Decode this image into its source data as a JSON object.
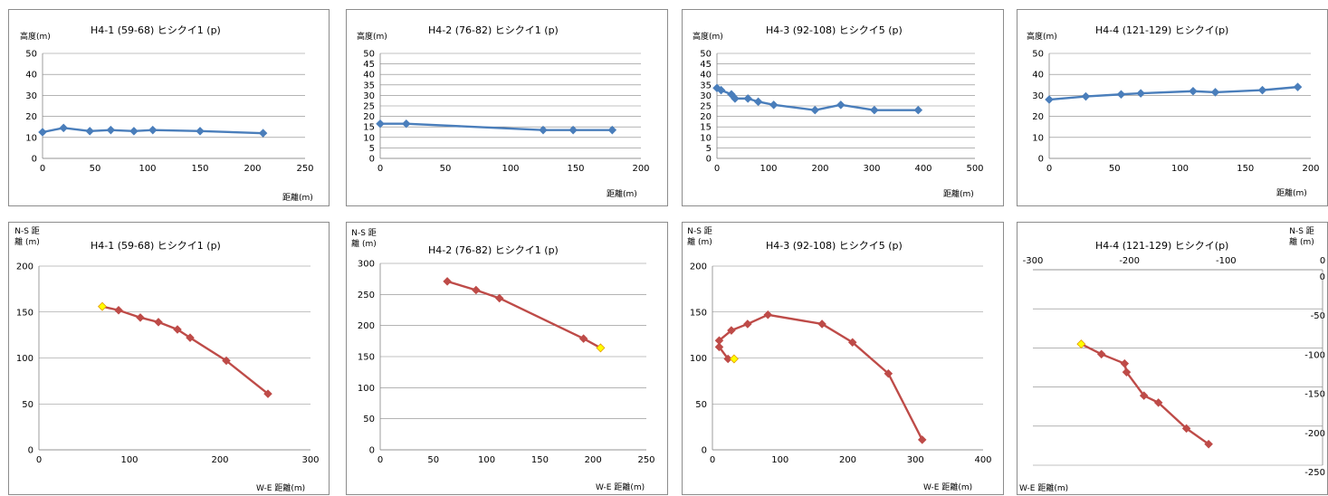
{
  "colors": {
    "profile_line": "#4a7ebb",
    "profile_marker": "#4a7ebb",
    "track_line": "#be4b48",
    "track_marker": "#be4b48",
    "start_marker": "#ffff00",
    "start_marker_edge": "#e6a000",
    "axis": "#868686",
    "grid": "#868686"
  },
  "chart_data": [
    {
      "type": "line",
      "title": "H4-1 (59-68) ヒシクイ1 (p)",
      "ylabel": "高度(m)",
      "xlabel": "距離(m)",
      "xlim": [
        0,
        250
      ],
      "ylim": [
        0,
        50
      ],
      "xticks": [
        0,
        50,
        100,
        150,
        200,
        250
      ],
      "yticks": [
        0,
        10,
        20,
        30,
        40,
        50
      ],
      "series": [
        {
          "x": [
            0,
            20,
            45,
            65,
            87,
            105,
            150,
            210
          ],
          "y": [
            12.5,
            14.5,
            13,
            13.5,
            13,
            13.5,
            13,
            12
          ]
        }
      ]
    },
    {
      "type": "line",
      "title": "H4-2 (76-82) ヒシクイ1 (p)",
      "ylabel": "高度(m)",
      "xlabel": "距離(m)",
      "xlim": [
        0,
        200
      ],
      "ylim": [
        0,
        50
      ],
      "xticks": [
        0,
        50,
        100,
        150,
        200
      ],
      "yticks": [
        0,
        5,
        10,
        15,
        20,
        25,
        30,
        35,
        40,
        45,
        50
      ],
      "series": [
        {
          "x": [
            0,
            20,
            125,
            148,
            178
          ],
          "y": [
            16.5,
            16.5,
            13.5,
            13.5,
            13.5
          ]
        }
      ]
    },
    {
      "type": "line",
      "title": "H4-3 (92-108) ヒシクイ5 (p)",
      "ylabel": "高度(m)",
      "xlabel": "距離(m)",
      "xlim": [
        0,
        500
      ],
      "ylim": [
        0,
        50
      ],
      "xticks": [
        0,
        100,
        200,
        300,
        400,
        500
      ],
      "yticks": [
        0,
        5,
        10,
        15,
        20,
        25,
        30,
        35,
        40,
        45,
        50
      ],
      "series": [
        {
          "x": [
            0,
            8,
            28,
            35,
            60,
            80,
            110,
            190,
            240,
            305,
            390
          ],
          "y": [
            33.5,
            32.5,
            30.5,
            28.5,
            28.5,
            27,
            25.5,
            23,
            25.5,
            23,
            23
          ]
        }
      ]
    },
    {
      "type": "line",
      "title": "H4-4 (121-129) ヒシクイ(p)",
      "ylabel": "高度(m)",
      "xlabel": "距離(m)",
      "xlim": [
        0,
        200
      ],
      "ylim": [
        0,
        50
      ],
      "xticks": [
        0,
        50,
        100,
        150,
        200
      ],
      "yticks": [
        0,
        10,
        20,
        30,
        40,
        50
      ],
      "series": [
        {
          "x": [
            0,
            28,
            55,
            70,
            110,
            127,
            163,
            190
          ],
          "y": [
            28,
            29.5,
            30.5,
            31,
            32,
            31.5,
            32.5,
            34
          ]
        }
      ]
    },
    {
      "type": "line",
      "title": "H4-1 (59-68) ヒシクイ1 (p)",
      "ylabel": "N-S 距離 (m)",
      "xlabel": "W-E 距離(m)",
      "xlim": [
        0,
        300
      ],
      "ylim": [
        0,
        200
      ],
      "xticks": [
        0,
        100,
        200,
        300
      ],
      "yticks": [
        0,
        50,
        100,
        150,
        200
      ],
      "start": [
        70,
        156
      ],
      "series": [
        {
          "x": [
            70,
            88,
            112,
            132,
            153,
            167,
            207,
            253
          ],
          "y": [
            156,
            152,
            144,
            139,
            131,
            122,
            97,
            61
          ]
        }
      ]
    },
    {
      "type": "line",
      "title": "H4-2 (76-82) ヒシクイ1 (p)",
      "ylabel": "N-S 距離 (m)",
      "xlabel": "W-E 距離(m)",
      "xlim": [
        0,
        250
      ],
      "ylim": [
        0,
        300
      ],
      "xticks": [
        0,
        50,
        100,
        150,
        200,
        250
      ],
      "yticks": [
        0,
        50,
        100,
        150,
        200,
        250,
        300
      ],
      "start": [
        207,
        164
      ],
      "series": [
        {
          "x": [
            63,
            90,
            112,
            191,
            207
          ],
          "y": [
            271,
            257,
            244,
            179,
            164
          ]
        }
      ]
    },
    {
      "type": "line",
      "title": "H4-3 (92-108) ヒシクイ5 (p)",
      "ylabel": "N-S 距離 (m)",
      "xlabel": "W-E 距離(m)",
      "xlim": [
        0,
        400
      ],
      "ylim": [
        0,
        200
      ],
      "xticks": [
        0,
        100,
        200,
        300,
        400
      ],
      "yticks": [
        0,
        50,
        100,
        150,
        200
      ],
      "start": [
        32,
        99
      ],
      "series": [
        {
          "x": [
            32,
            23,
            10,
            10,
            28,
            52,
            82,
            162,
            207,
            260,
            310
          ],
          "y": [
            99,
            99,
            112,
            119,
            130,
            137,
            147,
            137,
            117,
            83,
            11
          ]
        }
      ]
    },
    {
      "type": "line",
      "title": "H4-4 (121-129) ヒシクイ(p)",
      "ylabel": "N-S 距離 (m)",
      "xlabel": "W-E 距離(m)",
      "xlim": [
        -300,
        0
      ],
      "ylim": [
        -250,
        0
      ],
      "xticks": [
        -300,
        -200,
        -100,
        0
      ],
      "yticks": [
        0,
        -50,
        -100,
        -150,
        -200,
        -250
      ],
      "start": [
        -250,
        -95
      ],
      "series": [
        {
          "x": [
            -250,
            -229,
            -205,
            -203,
            -185,
            -170,
            -141,
            -118
          ],
          "y": [
            -95,
            -108,
            -120,
            -131,
            -161,
            -170,
            -203,
            -223
          ]
        }
      ]
    }
  ]
}
